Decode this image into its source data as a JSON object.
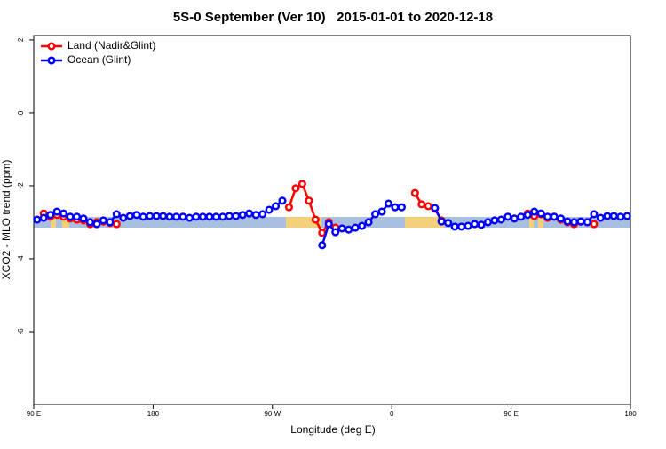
{
  "chart_data": {
    "type": "line",
    "title": "5S-0 September (Ver 10)   2015-01-01 to 2020-12-18",
    "x_label": "Longitude (deg E)",
    "y_label": "XCO2 - MLO trend (ppm)",
    "x": [
      92.5,
      97.5,
      102.5,
      107.5,
      112.5,
      117.5,
      122.5,
      127.5,
      132.5,
      137.5,
      142.5,
      147.5,
      152.5,
      157.5,
      162.5,
      167.5,
      172.5,
      177.5,
      182.5,
      187.5,
      192.5,
      197.5,
      202.5,
      207.5,
      212.5,
      217.5,
      222.5,
      227.5,
      232.5,
      237.5,
      242.5,
      247.5,
      252.5,
      257.5,
      262.5,
      267.5,
      272.5,
      277.5,
      282.5,
      287.5,
      292.5,
      297.5,
      302.5,
      307.5,
      312.5,
      317.5,
      322.5,
      327.5,
      332.5,
      337.5,
      342.5,
      347.5,
      352.5,
      357.5,
      362.5,
      367.5,
      372.5,
      377.5,
      382.5,
      387.5,
      392.5,
      397.5,
      402.5,
      407.5,
      412.5,
      417.5,
      422.5,
      427.5,
      432.5,
      437.5,
      442.5,
      447.5,
      452.5,
      457.5,
      462.5,
      467.5,
      472.5,
      477.5,
      482.5,
      487.5,
      492.5,
      497.5,
      502.5,
      507.5,
      512.5,
      517.5,
      522.5,
      527.5,
      532.5,
      537.5
    ],
    "series": [
      {
        "name": "Land (Nadir&Glint)",
        "color": "#ff0000",
        "values": [
          null,
          -2.76,
          -2.85,
          -2.8,
          -2.85,
          -2.9,
          -2.93,
          -2.95,
          -3.05,
          -3.0,
          -2.98,
          -3.02,
          -3.05,
          null,
          null,
          null,
          null,
          null,
          null,
          null,
          null,
          null,
          null,
          null,
          null,
          null,
          null,
          null,
          null,
          null,
          null,
          null,
          null,
          null,
          null,
          null,
          null,
          null,
          -2.59,
          -2.07,
          -1.95,
          -2.41,
          -2.93,
          -3.29,
          -3.0,
          -3.15,
          null,
          null,
          null,
          null,
          null,
          null,
          null,
          null,
          null,
          null,
          null,
          -2.2,
          -2.51,
          -2.56,
          -2.63,
          -2.95,
          null,
          null,
          null,
          null,
          null,
          null,
          null,
          null,
          null,
          null,
          null,
          null,
          -2.76,
          -2.83,
          -2.78,
          -2.88,
          -2.85,
          -2.93,
          -3.0,
          -3.05,
          -2.98,
          -3.0,
          -3.05,
          null,
          null,
          null,
          null,
          null
        ]
      },
      {
        "name": "Ocean (Glint)",
        "color": "#0000ff",
        "values": [
          -2.93,
          -2.88,
          -2.8,
          -2.71,
          -2.76,
          -2.85,
          -2.85,
          -2.9,
          -3.0,
          -3.05,
          -2.95,
          -3.0,
          -2.78,
          -2.88,
          -2.83,
          -2.8,
          -2.85,
          -2.83,
          -2.83,
          -2.83,
          -2.85,
          -2.85,
          -2.85,
          -2.88,
          -2.85,
          -2.85,
          -2.85,
          -2.85,
          -2.85,
          -2.83,
          -2.83,
          -2.8,
          -2.76,
          -2.8,
          -2.78,
          -2.66,
          -2.56,
          -2.41,
          null,
          null,
          null,
          null,
          null,
          -3.63,
          -3.05,
          -3.27,
          -3.17,
          -3.2,
          -3.15,
          -3.1,
          -3.0,
          -2.78,
          -2.71,
          -2.49,
          -2.59,
          -2.59,
          null,
          null,
          null,
          null,
          -2.61,
          -2.98,
          -3.02,
          -3.12,
          -3.12,
          -3.1,
          -3.05,
          -3.07,
          -3.0,
          -2.95,
          -2.93,
          -2.85,
          -2.9,
          -2.85,
          -2.8,
          -2.71,
          -2.76,
          -2.85,
          -2.85,
          -2.9,
          -2.98,
          -3.0,
          -2.98,
          -3.0,
          -2.78,
          -2.88,
          -2.83,
          -2.83,
          -2.85,
          -2.83
        ]
      }
    ],
    "xlim": [
      90,
      540
    ],
    "xticks": [
      {
        "value": 90,
        "label": "90 E"
      },
      180,
      {
        "value": 270,
        "label": "90 W"
      },
      {
        "value": 360,
        "label": "0"
      },
      {
        "value": 450,
        "label": "90 E"
      },
      {
        "value": 540,
        "label": "180"
      }
    ],
    "ylim": [
      -8,
      2.12
    ],
    "yticks": [
      2,
      0,
      -2,
      -4,
      -6
    ],
    "legend": "top-left"
  }
}
